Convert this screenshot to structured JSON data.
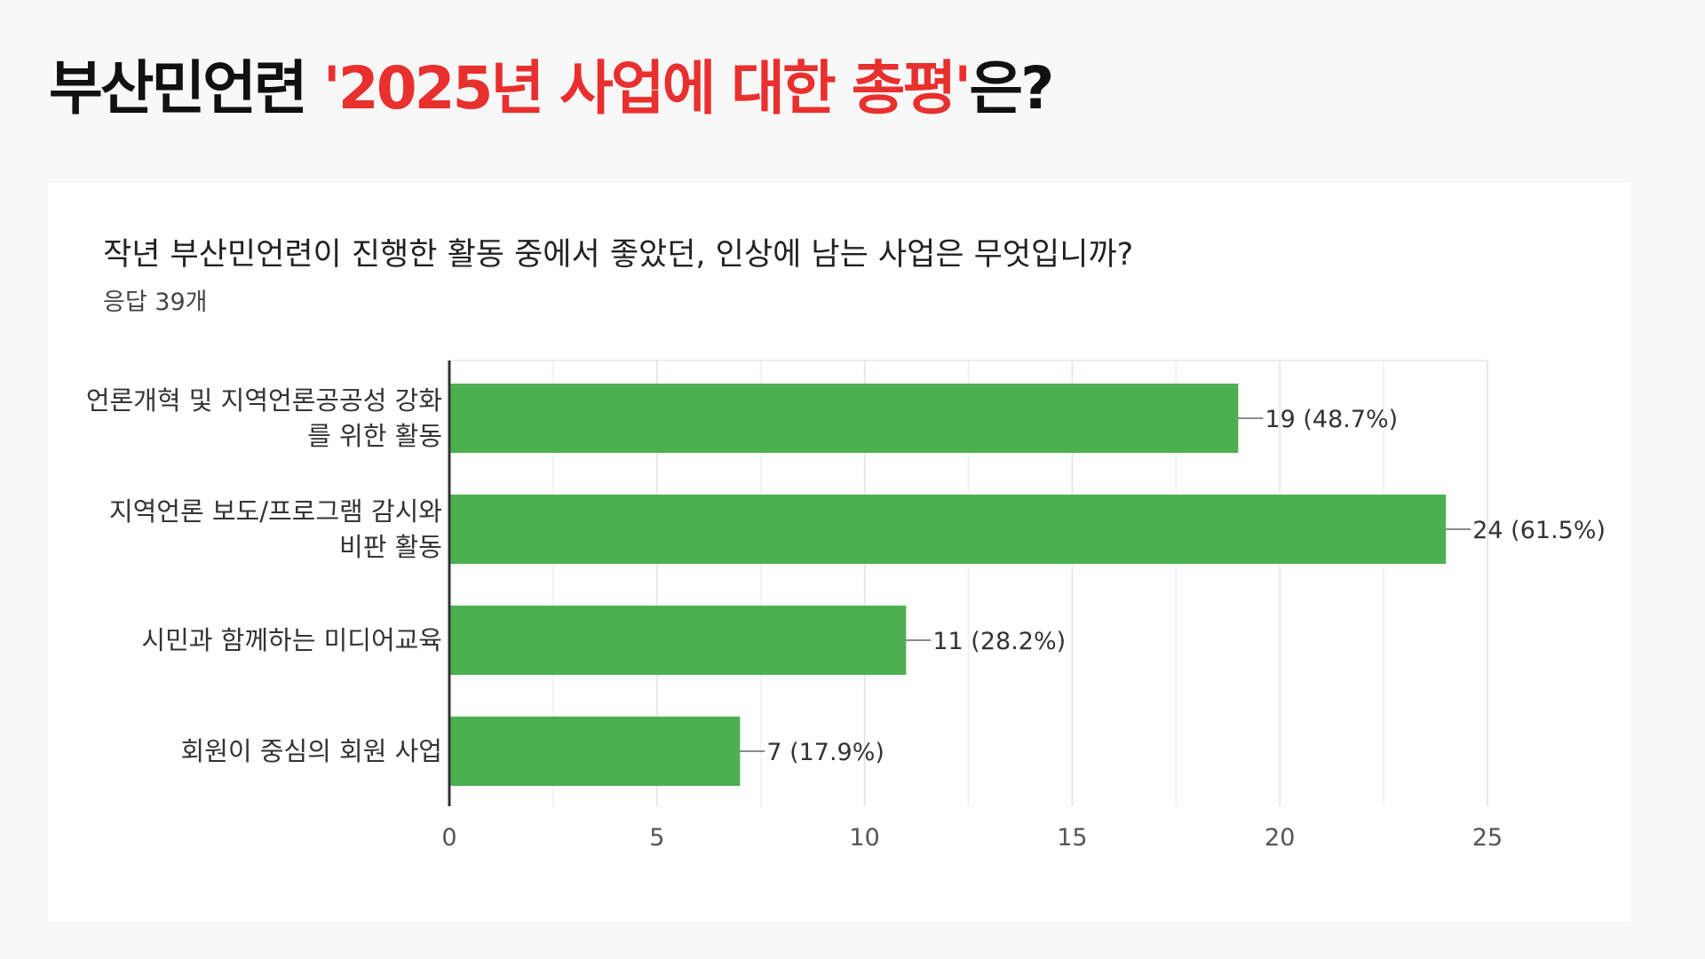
{
  "headline": {
    "prefix": "부산민언련 ",
    "highlight": "'2025년 사업에 대한 총평'",
    "suffix": "은?"
  },
  "chart_data": {
    "type": "bar",
    "orientation": "horizontal",
    "title": "작년 부산민언련이 진행한 활동 중에서 좋았던, 인상에 남는  사업은 무엇입니까?",
    "subtitle": "응답 39개",
    "categories": [
      [
        "언론개혁 및 지역언론공공성 강화",
        "를 위한 활동"
      ],
      [
        "지역언론 보도/프로그램 감시와",
        "비판 활동"
      ],
      [
        "시민과 함께하는 미디어교육"
      ],
      [
        "회원이 중심의 회원 사업"
      ]
    ],
    "values": [
      19,
      24,
      11,
      7
    ],
    "value_labels": [
      "19 (48.7%)",
      "24 (61.5%)",
      "11 (28.2%)",
      "7 (17.9%)"
    ],
    "xlim": [
      0,
      25
    ],
    "xticks": [
      0,
      5,
      10,
      15,
      20,
      25
    ],
    "xlabel": "",
    "ylabel": "",
    "grid": true,
    "bar_color": "#4caf50"
  }
}
